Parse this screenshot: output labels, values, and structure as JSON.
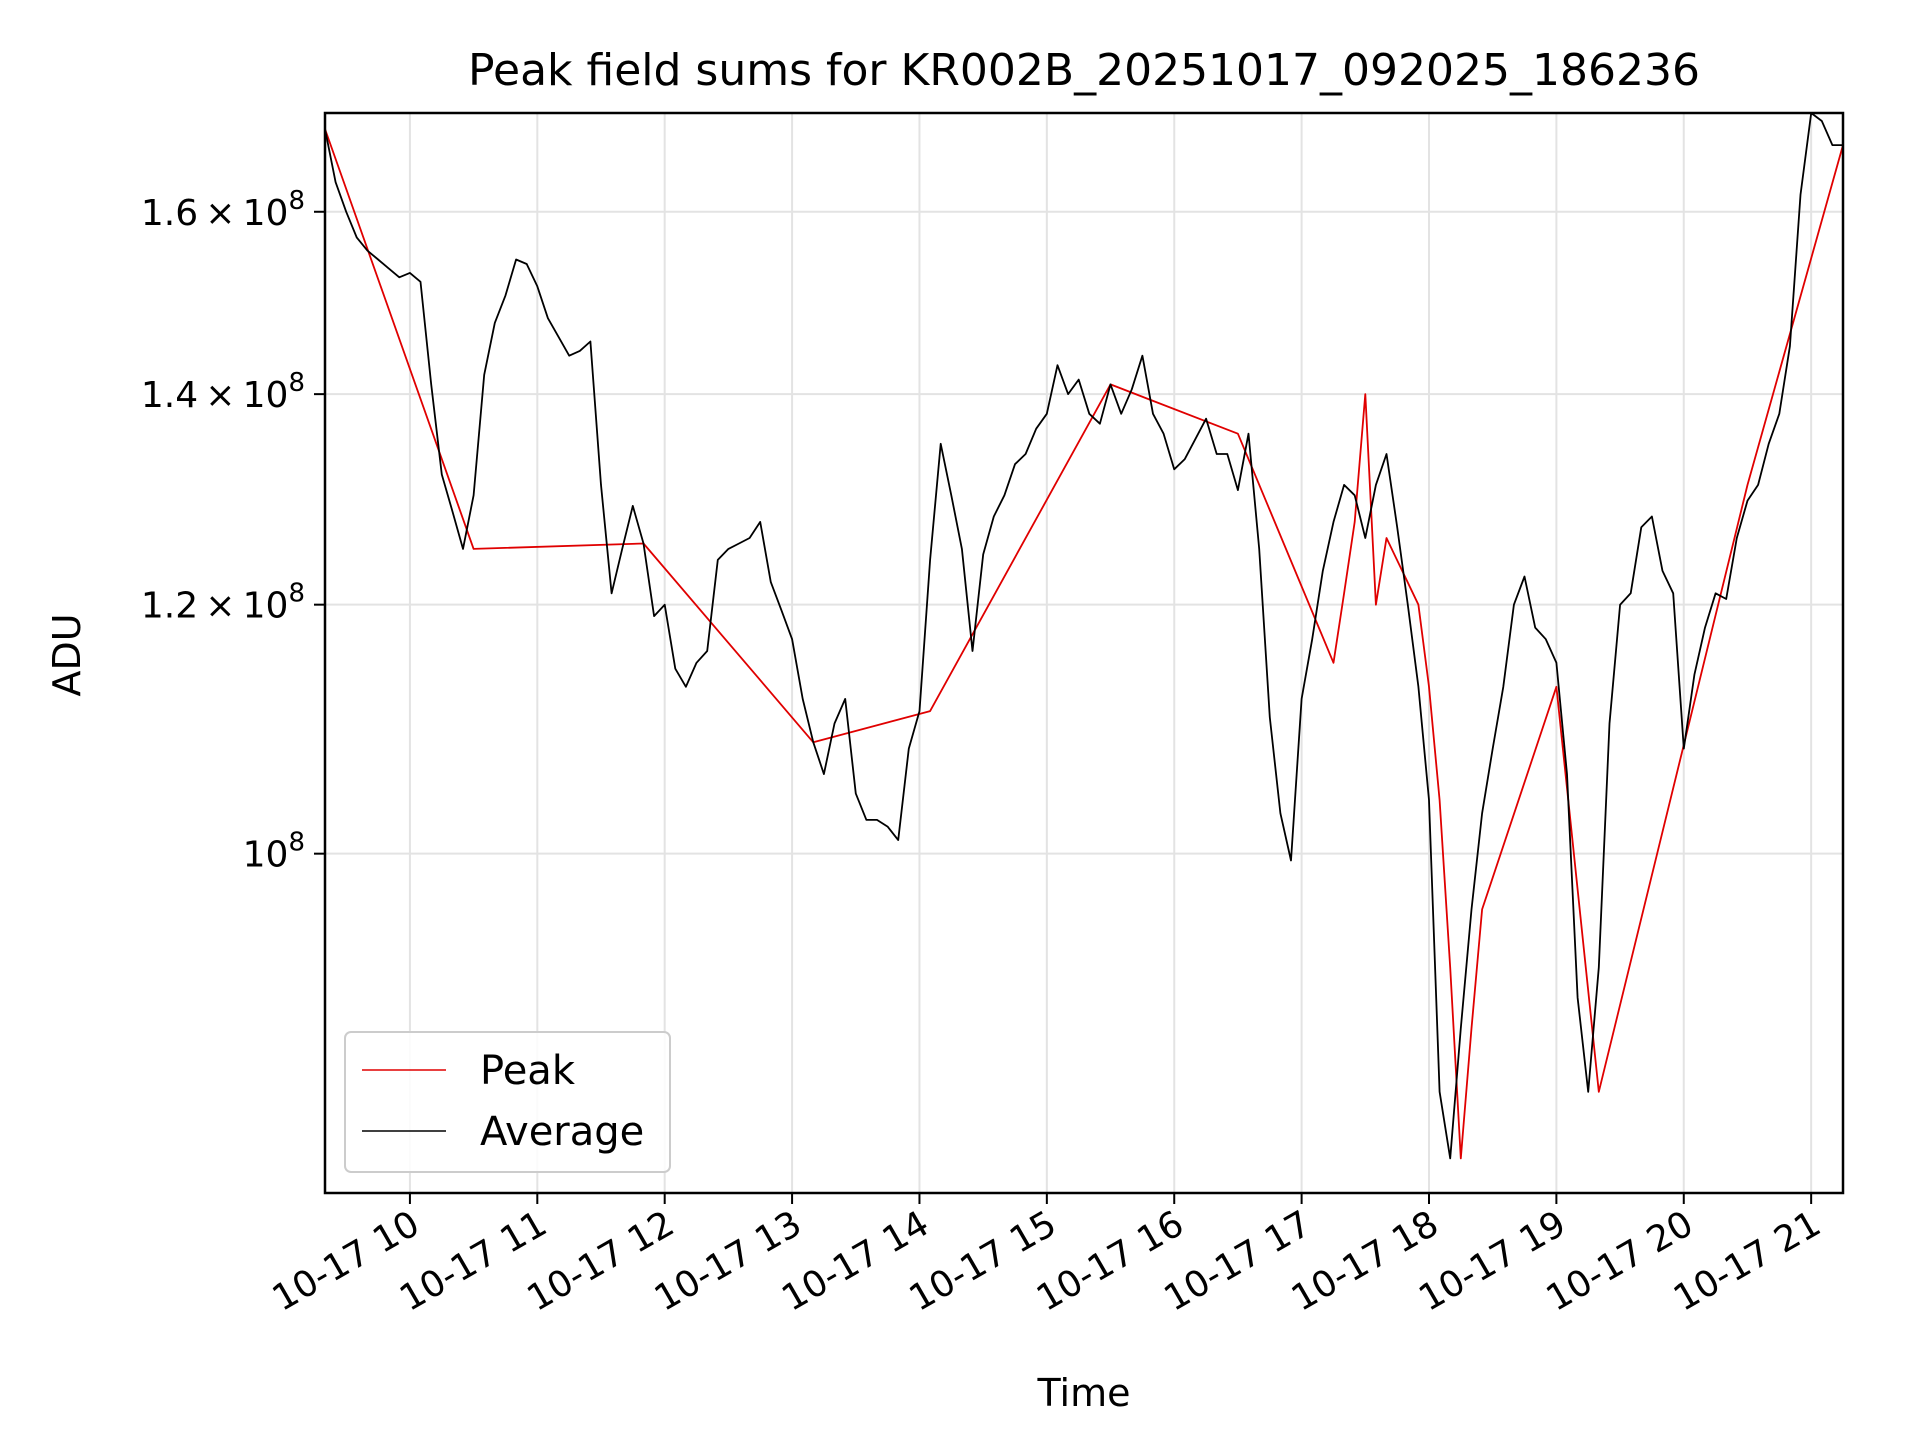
{
  "chart_data": {
    "type": "line",
    "title": "Peak field sums for KR002B_20251017_092025_186236",
    "xlabel": "Time",
    "ylabel": "ADU",
    "y_scale": "log",
    "grid": true,
    "legend_position": "lower-left",
    "xlim": [
      "2025-10-17 09:20",
      "2025-10-17 21:15"
    ],
    "ylim": [
      78000000,
      172000000
    ],
    "x_ticks": [
      "10-17 10",
      "10-17 11",
      "10-17 12",
      "10-17 13",
      "10-17 14",
      "10-17 15",
      "10-17 16",
      "10-17 17",
      "10-17 18",
      "10-17 19",
      "10-17 20",
      "10-17 21"
    ],
    "x_tick_times": [
      "2025-10-17 10:00",
      "2025-10-17 11:00",
      "2025-10-17 12:00",
      "2025-10-17 13:00",
      "2025-10-17 14:00",
      "2025-10-17 15:00",
      "2025-10-17 16:00",
      "2025-10-17 17:00",
      "2025-10-17 18:00",
      "2025-10-17 19:00",
      "2025-10-17 20:00",
      "2025-10-17 21:00"
    ],
    "y_ticks": [
      {
        "value": 100000000,
        "mantissa": "",
        "exponent": "8"
      },
      {
        "value": 120000000,
        "mantissa": "1.2",
        "exponent": "8"
      },
      {
        "value": 140000000,
        "mantissa": "1.4",
        "exponent": "8"
      },
      {
        "value": 160000000,
        "mantissa": "1.6",
        "exponent": "8"
      }
    ],
    "series": [
      {
        "name": "Average",
        "color": "#000000",
        "x": [
          "2025-10-17 09:20",
          "2025-10-17 09:25",
          "2025-10-17 09:30",
          "2025-10-17 09:35",
          "2025-10-17 09:40",
          "2025-10-17 09:45",
          "2025-10-17 09:50",
          "2025-10-17 09:55",
          "2025-10-17 10:00",
          "2025-10-17 10:05",
          "2025-10-17 10:10",
          "2025-10-17 10:15",
          "2025-10-17 10:20",
          "2025-10-17 10:25",
          "2025-10-17 10:30",
          "2025-10-17 10:35",
          "2025-10-17 10:40",
          "2025-10-17 10:45",
          "2025-10-17 10:50",
          "2025-10-17 10:55",
          "2025-10-17 11:00",
          "2025-10-17 11:05",
          "2025-10-17 11:10",
          "2025-10-17 11:15",
          "2025-10-17 11:20",
          "2025-10-17 11:25",
          "2025-10-17 11:30",
          "2025-10-17 11:35",
          "2025-10-17 11:40",
          "2025-10-17 11:45",
          "2025-10-17 11:50",
          "2025-10-17 11:55",
          "2025-10-17 12:00",
          "2025-10-17 12:05",
          "2025-10-17 12:10",
          "2025-10-17 12:15",
          "2025-10-17 12:20",
          "2025-10-17 12:25",
          "2025-10-17 12:30",
          "2025-10-17 12:35",
          "2025-10-17 12:40",
          "2025-10-17 12:45",
          "2025-10-17 12:50",
          "2025-10-17 12:55",
          "2025-10-17 13:00",
          "2025-10-17 13:05",
          "2025-10-17 13:10",
          "2025-10-17 13:15",
          "2025-10-17 13:20",
          "2025-10-17 13:25",
          "2025-10-17 13:30",
          "2025-10-17 13:35",
          "2025-10-17 13:40",
          "2025-10-17 13:45",
          "2025-10-17 13:50",
          "2025-10-17 13:55",
          "2025-10-17 14:00",
          "2025-10-17 14:05",
          "2025-10-17 14:10",
          "2025-10-17 14:15",
          "2025-10-17 14:20",
          "2025-10-17 14:25",
          "2025-10-17 14:30",
          "2025-10-17 14:35",
          "2025-10-17 14:40",
          "2025-10-17 14:45",
          "2025-10-17 14:50",
          "2025-10-17 14:55",
          "2025-10-17 15:00",
          "2025-10-17 15:05",
          "2025-10-17 15:10",
          "2025-10-17 15:15",
          "2025-10-17 15:20",
          "2025-10-17 15:25",
          "2025-10-17 15:30",
          "2025-10-17 15:35",
          "2025-10-17 15:40",
          "2025-10-17 15:45",
          "2025-10-17 15:50",
          "2025-10-17 15:55",
          "2025-10-17 16:00",
          "2025-10-17 16:05",
          "2025-10-17 16:10",
          "2025-10-17 16:15",
          "2025-10-17 16:20",
          "2025-10-17 16:25",
          "2025-10-17 16:30",
          "2025-10-17 16:35",
          "2025-10-17 16:40",
          "2025-10-17 16:45",
          "2025-10-17 16:50",
          "2025-10-17 16:55",
          "2025-10-17 17:00",
          "2025-10-17 17:05",
          "2025-10-17 17:10",
          "2025-10-17 17:15",
          "2025-10-17 17:20",
          "2025-10-17 17:25",
          "2025-10-17 17:30",
          "2025-10-17 17:35",
          "2025-10-17 17:40",
          "2025-10-17 17:45",
          "2025-10-17 17:50",
          "2025-10-17 17:55",
          "2025-10-17 18:00",
          "2025-10-17 18:05",
          "2025-10-17 18:10",
          "2025-10-17 18:15",
          "2025-10-17 18:20",
          "2025-10-17 18:25",
          "2025-10-17 18:30",
          "2025-10-17 18:35",
          "2025-10-17 18:40",
          "2025-10-17 18:45",
          "2025-10-17 18:50",
          "2025-10-17 18:55",
          "2025-10-17 19:00",
          "2025-10-17 19:05",
          "2025-10-17 19:10",
          "2025-10-17 19:15",
          "2025-10-17 19:20",
          "2025-10-17 19:25",
          "2025-10-17 19:30",
          "2025-10-17 19:35",
          "2025-10-17 19:40",
          "2025-10-17 19:45",
          "2025-10-17 19:50",
          "2025-10-17 19:55",
          "2025-10-17 20:00",
          "2025-10-17 20:05",
          "2025-10-17 20:10",
          "2025-10-17 20:15",
          "2025-10-17 20:20",
          "2025-10-17 20:25",
          "2025-10-17 20:30",
          "2025-10-17 20:35",
          "2025-10-17 20:40",
          "2025-10-17 20:45",
          "2025-10-17 20:50",
          "2025-10-17 20:55",
          "2025-10-17 21:00",
          "2025-10-17 21:05",
          "2025-10-17 21:10",
          "2025-10-17 21:15"
        ],
        "y": [
          170000000,
          163500000,
          160000000,
          157000000,
          155500000,
          154500000,
          153500000,
          152500000,
          153000000,
          152000000,
          141000000,
          132000000,
          128500000,
          125000000,
          130000000,
          142000000,
          147500000,
          150500000,
          154500000,
          154000000,
          151500000,
          148000000,
          146000000,
          144000000,
          144500000,
          145500000,
          131000000,
          121000000,
          125000000,
          129000000,
          125500000,
          119000000,
          120000000,
          114500000,
          113000000,
          115000000,
          116000000,
          124000000,
          125000000,
          125500000,
          126000000,
          127500000,
          122000000,
          119500000,
          117000000,
          112000000,
          108500000,
          106000000,
          110000000,
          112000000,
          104500000,
          102500000,
          102500000,
          102000000,
          101000000,
          108000000,
          111000000,
          124000000,
          135000000,
          130000000,
          125000000,
          116000000,
          124500000,
          128000000,
          130000000,
          133000000,
          134000000,
          136500000,
          138000000,
          143000000,
          140000000,
          141500000,
          138000000,
          137000000,
          141000000,
          138000000,
          140500000,
          144000000,
          138000000,
          136000000,
          132500000,
          133500000,
          135500000,
          137500000,
          134000000,
          134000000,
          130500000,
          136000000,
          125000000,
          110500000,
          103000000,
          99500000,
          112000000,
          117000000,
          123000000,
          127500000,
          131000000,
          130000000,
          126000000,
          131000000,
          134000000,
          127000000,
          120000000,
          113000000,
          104000000,
          84000000,
          80000000,
          88000000,
          96000000,
          103000000,
          108000000,
          113000000,
          120000000,
          122500000,
          118000000,
          117000000,
          115000000,
          106000000,
          90000000,
          84000000,
          92000000,
          110000000,
          120000000,
          121000000,
          127000000,
          128000000,
          123000000,
          121000000,
          108000000,
          114000000,
          118000000,
          121000000,
          120500000,
          126000000,
          129500000,
          131000000,
          135000000,
          138000000,
          145000000,
          162000000,
          172000000,
          171000000,
          168000000,
          168000000
        ]
      },
      {
        "name": "Peak",
        "color": "#e00000",
        "x": [
          "2025-10-17 09:20",
          "2025-10-17 10:30",
          "2025-10-17 11:50",
          "2025-10-17 13:10",
          "2025-10-17 14:05",
          "2025-10-17 15:30",
          "2025-10-17 16:30",
          "2025-10-17 17:15",
          "2025-10-17 17:20",
          "2025-10-17 17:25",
          "2025-10-17 17:30",
          "2025-10-17 17:35",
          "2025-10-17 17:40",
          "2025-10-17 17:55",
          "2025-10-17 18:00",
          "2025-10-17 18:05",
          "2025-10-17 18:10",
          "2025-10-17 18:15",
          "2025-10-17 18:20",
          "2025-10-17 18:25",
          "2025-10-17 19:00",
          "2025-10-17 19:20",
          "2025-10-17 20:30",
          "2025-10-17 21:15"
        ],
        "y": [
          170000000,
          125000000,
          125500000,
          108500000,
          111000000,
          141000000,
          136000000,
          115000000,
          121000000,
          127500000,
          140000000,
          120000000,
          126000000,
          120000000,
          113000000,
          104000000,
          92000000,
          80000000,
          88000000,
          96000000,
          113000000,
          84000000,
          131000000,
          168000000
        ]
      }
    ]
  }
}
